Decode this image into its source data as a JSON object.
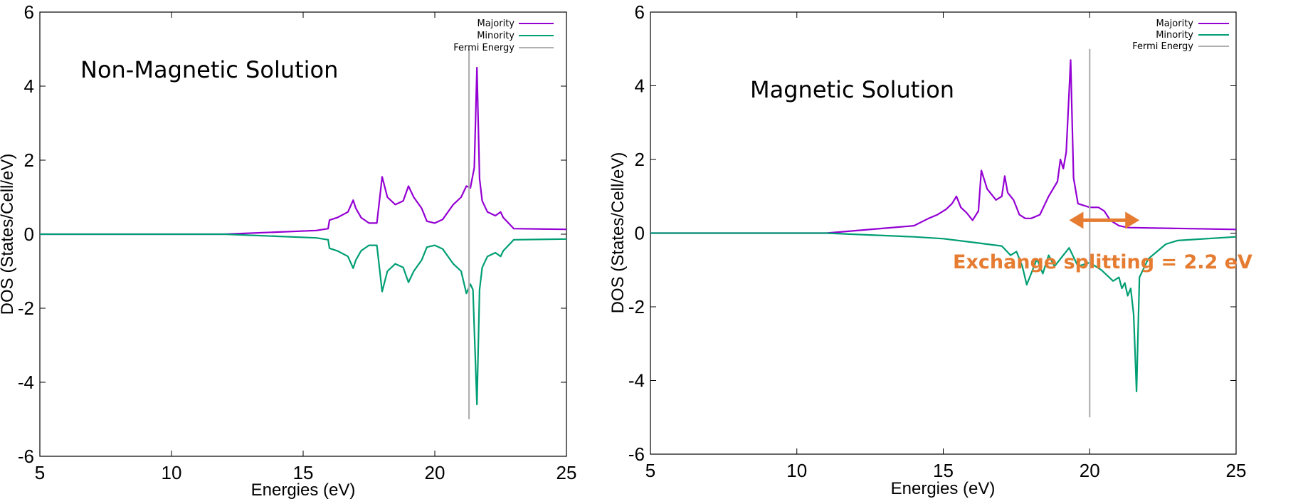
{
  "colors": {
    "majority": "#9400d3",
    "minority": "#009e73",
    "fermi": "#b0b0b0",
    "annotation": "#e57c31"
  },
  "chart_data": [
    {
      "type": "line",
      "title": "Non-Magnetic Solution",
      "xlabel": "Energies (eV)",
      "ylabel": "DOS  (States/Cell/eV)",
      "xlim": [
        5,
        25
      ],
      "ylim": [
        -6,
        6
      ],
      "xticks": [
        5,
        10,
        15,
        20,
        25
      ],
      "yticks": [
        -6,
        -4,
        -2,
        0,
        2,
        4,
        6
      ],
      "grid": false,
      "legend_position": "top-right",
      "fermi_energy": 21.3,
      "fermi_range": [
        -5,
        5
      ],
      "series": [
        {
          "name": "Majority",
          "x": [
            5,
            12,
            15.5,
            15.95,
            16.0,
            16.3,
            16.7,
            16.9,
            17.0,
            17.2,
            17.5,
            17.8,
            18.0,
            18.2,
            18.5,
            18.8,
            19.0,
            19.2,
            19.5,
            19.7,
            20.0,
            20.3,
            20.7,
            21.0,
            21.2,
            21.35,
            21.5,
            21.6,
            21.7,
            21.8,
            22.0,
            22.3,
            22.5,
            22.6,
            22.8,
            23.0,
            25
          ],
          "y": [
            0,
            0,
            0.1,
            0.15,
            0.38,
            0.45,
            0.6,
            0.92,
            0.7,
            0.45,
            0.3,
            0.3,
            1.55,
            1.0,
            0.8,
            0.9,
            1.3,
            1.0,
            0.7,
            0.35,
            0.3,
            0.4,
            0.8,
            1.0,
            1.3,
            1.25,
            1.8,
            4.5,
            1.5,
            0.9,
            0.6,
            0.5,
            0.6,
            0.45,
            0.3,
            0.15,
            0.13
          ]
        },
        {
          "name": "Minority",
          "x": [
            5,
            12,
            15.5,
            15.95,
            16.0,
            16.3,
            16.7,
            16.9,
            17.0,
            17.2,
            17.5,
            17.8,
            18.0,
            18.2,
            18.5,
            18.8,
            19.0,
            19.2,
            19.5,
            19.7,
            20.0,
            20.3,
            20.7,
            21.0,
            21.2,
            21.35,
            21.45,
            21.6,
            21.7,
            21.8,
            22.0,
            22.3,
            22.5,
            22.6,
            22.8,
            23.0,
            25
          ],
          "y": [
            0,
            0,
            -0.1,
            -0.15,
            -0.38,
            -0.45,
            -0.6,
            -0.92,
            -0.7,
            -0.45,
            -0.3,
            -0.3,
            -1.55,
            -1.0,
            -0.8,
            -0.9,
            -1.3,
            -1.0,
            -0.7,
            -0.35,
            -0.3,
            -0.4,
            -0.8,
            -1.0,
            -1.6,
            -1.35,
            -1.5,
            -4.6,
            -1.5,
            -0.9,
            -0.6,
            -0.5,
            -0.6,
            -0.45,
            -0.3,
            -0.15,
            -0.13
          ]
        }
      ]
    },
    {
      "type": "line",
      "title": "Magnetic Solution",
      "xlabel": "Energies (eV)",
      "ylabel": "DOS  (States/Cell/eV)",
      "xlim": [
        5,
        25
      ],
      "ylim": [
        -6,
        6
      ],
      "xticks": [
        5,
        10,
        15,
        20,
        25
      ],
      "yticks": [
        -6,
        -4,
        -2,
        0,
        2,
        4,
        6
      ],
      "grid": false,
      "legend_position": "top-right",
      "fermi_energy": 20.0,
      "fermi_range": [
        -5,
        5
      ],
      "annotation": {
        "text": "Exchange splitting = 2.2 eV",
        "arrow_x": [
          19.3,
          21.7
        ],
        "arrow_y": 0.35
      },
      "series": [
        {
          "name": "Majority",
          "x": [
            5,
            11,
            14.0,
            14.5,
            14.8,
            15.1,
            15.3,
            15.45,
            15.6,
            15.8,
            16.0,
            16.2,
            16.3,
            16.5,
            16.8,
            17.0,
            17.1,
            17.2,
            17.4,
            17.6,
            17.8,
            18.0,
            18.3,
            18.6,
            18.9,
            19.0,
            19.1,
            19.2,
            19.35,
            19.45,
            19.6,
            20.0,
            20.3,
            20.5,
            20.7,
            21.0,
            21.3,
            25
          ],
          "y": [
            0,
            0,
            0.2,
            0.4,
            0.5,
            0.65,
            0.8,
            1.0,
            0.7,
            0.55,
            0.35,
            0.6,
            1.7,
            1.2,
            0.9,
            1.0,
            1.55,
            1.1,
            0.9,
            0.5,
            0.4,
            0.4,
            0.5,
            1.0,
            1.4,
            2.0,
            1.75,
            2.2,
            4.7,
            1.5,
            0.8,
            0.7,
            0.7,
            0.6,
            0.35,
            0.2,
            0.15,
            0.1
          ]
        },
        {
          "name": "Minority",
          "x": [
            5,
            11,
            14.0,
            15.0,
            16.0,
            16.5,
            17.0,
            17.3,
            17.5,
            17.7,
            17.85,
            18.0,
            18.2,
            18.4,
            18.6,
            18.8,
            19.0,
            19.3,
            19.6,
            20.0,
            20.4,
            20.8,
            21.0,
            21.1,
            21.2,
            21.3,
            21.4,
            21.5,
            21.6,
            21.7,
            22.0,
            22.3,
            22.6,
            23.0,
            25
          ],
          "y": [
            0,
            0,
            -0.1,
            -0.15,
            -0.25,
            -0.3,
            -0.35,
            -0.6,
            -0.5,
            -0.9,
            -1.4,
            -1.1,
            -0.7,
            -1.1,
            -0.6,
            -0.9,
            -0.7,
            -0.4,
            -0.9,
            -0.8,
            -1.0,
            -1.3,
            -1.2,
            -1.5,
            -1.35,
            -1.7,
            -1.5,
            -2.2,
            -4.3,
            -1.2,
            -0.7,
            -0.5,
            -0.3,
            -0.2,
            -0.1
          ]
        }
      ]
    }
  ]
}
